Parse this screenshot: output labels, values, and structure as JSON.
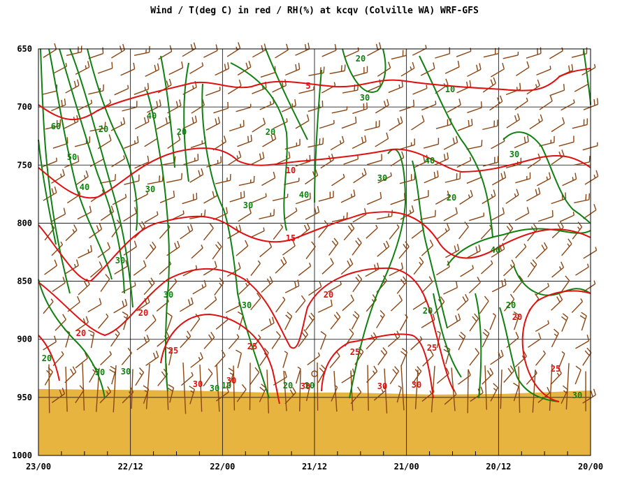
{
  "chart_data": {
    "type": "line",
    "title": "Wind / T(deg C) in red / RH(%) at kcqv (Colville WA)  WRF-GFS",
    "y_axis": {
      "ticks": [
        "650",
        "700",
        "750",
        "800",
        "850",
        "900",
        "950",
        "1000"
      ],
      "range": [
        650,
        1000
      ],
      "units": ""
    },
    "x_axis": {
      "ticks": [
        "23/00",
        "22/12",
        "22/00",
        "21/12",
        "21/00",
        "20/12",
        "20/00"
      ]
    },
    "grid": true,
    "temperature_contours": {
      "color": "#e01010",
      "labels": [
        "5",
        "10",
        "15",
        "20",
        "20",
        "25",
        "25",
        "25",
        "30",
        "30",
        "30",
        "30",
        "30",
        "25",
        "20",
        "20",
        "25"
      ]
    },
    "rh_contours": {
      "color": "#108010",
      "labels": [
        "20",
        "30",
        "10",
        "60",
        "20",
        "40",
        "20",
        "20",
        "50",
        "40",
        "30",
        "30",
        "40",
        "30",
        "40",
        "30",
        "20",
        "40",
        "30",
        "30",
        "30",
        "20",
        "20",
        "30",
        "20",
        "30",
        "20",
        "30",
        "10",
        "10",
        "30",
        "20"
      ]
    },
    "terrain": {
      "color": "#e8b440",
      "top_pressure": 944
    },
    "wind_barb_color": "#8b4513"
  }
}
